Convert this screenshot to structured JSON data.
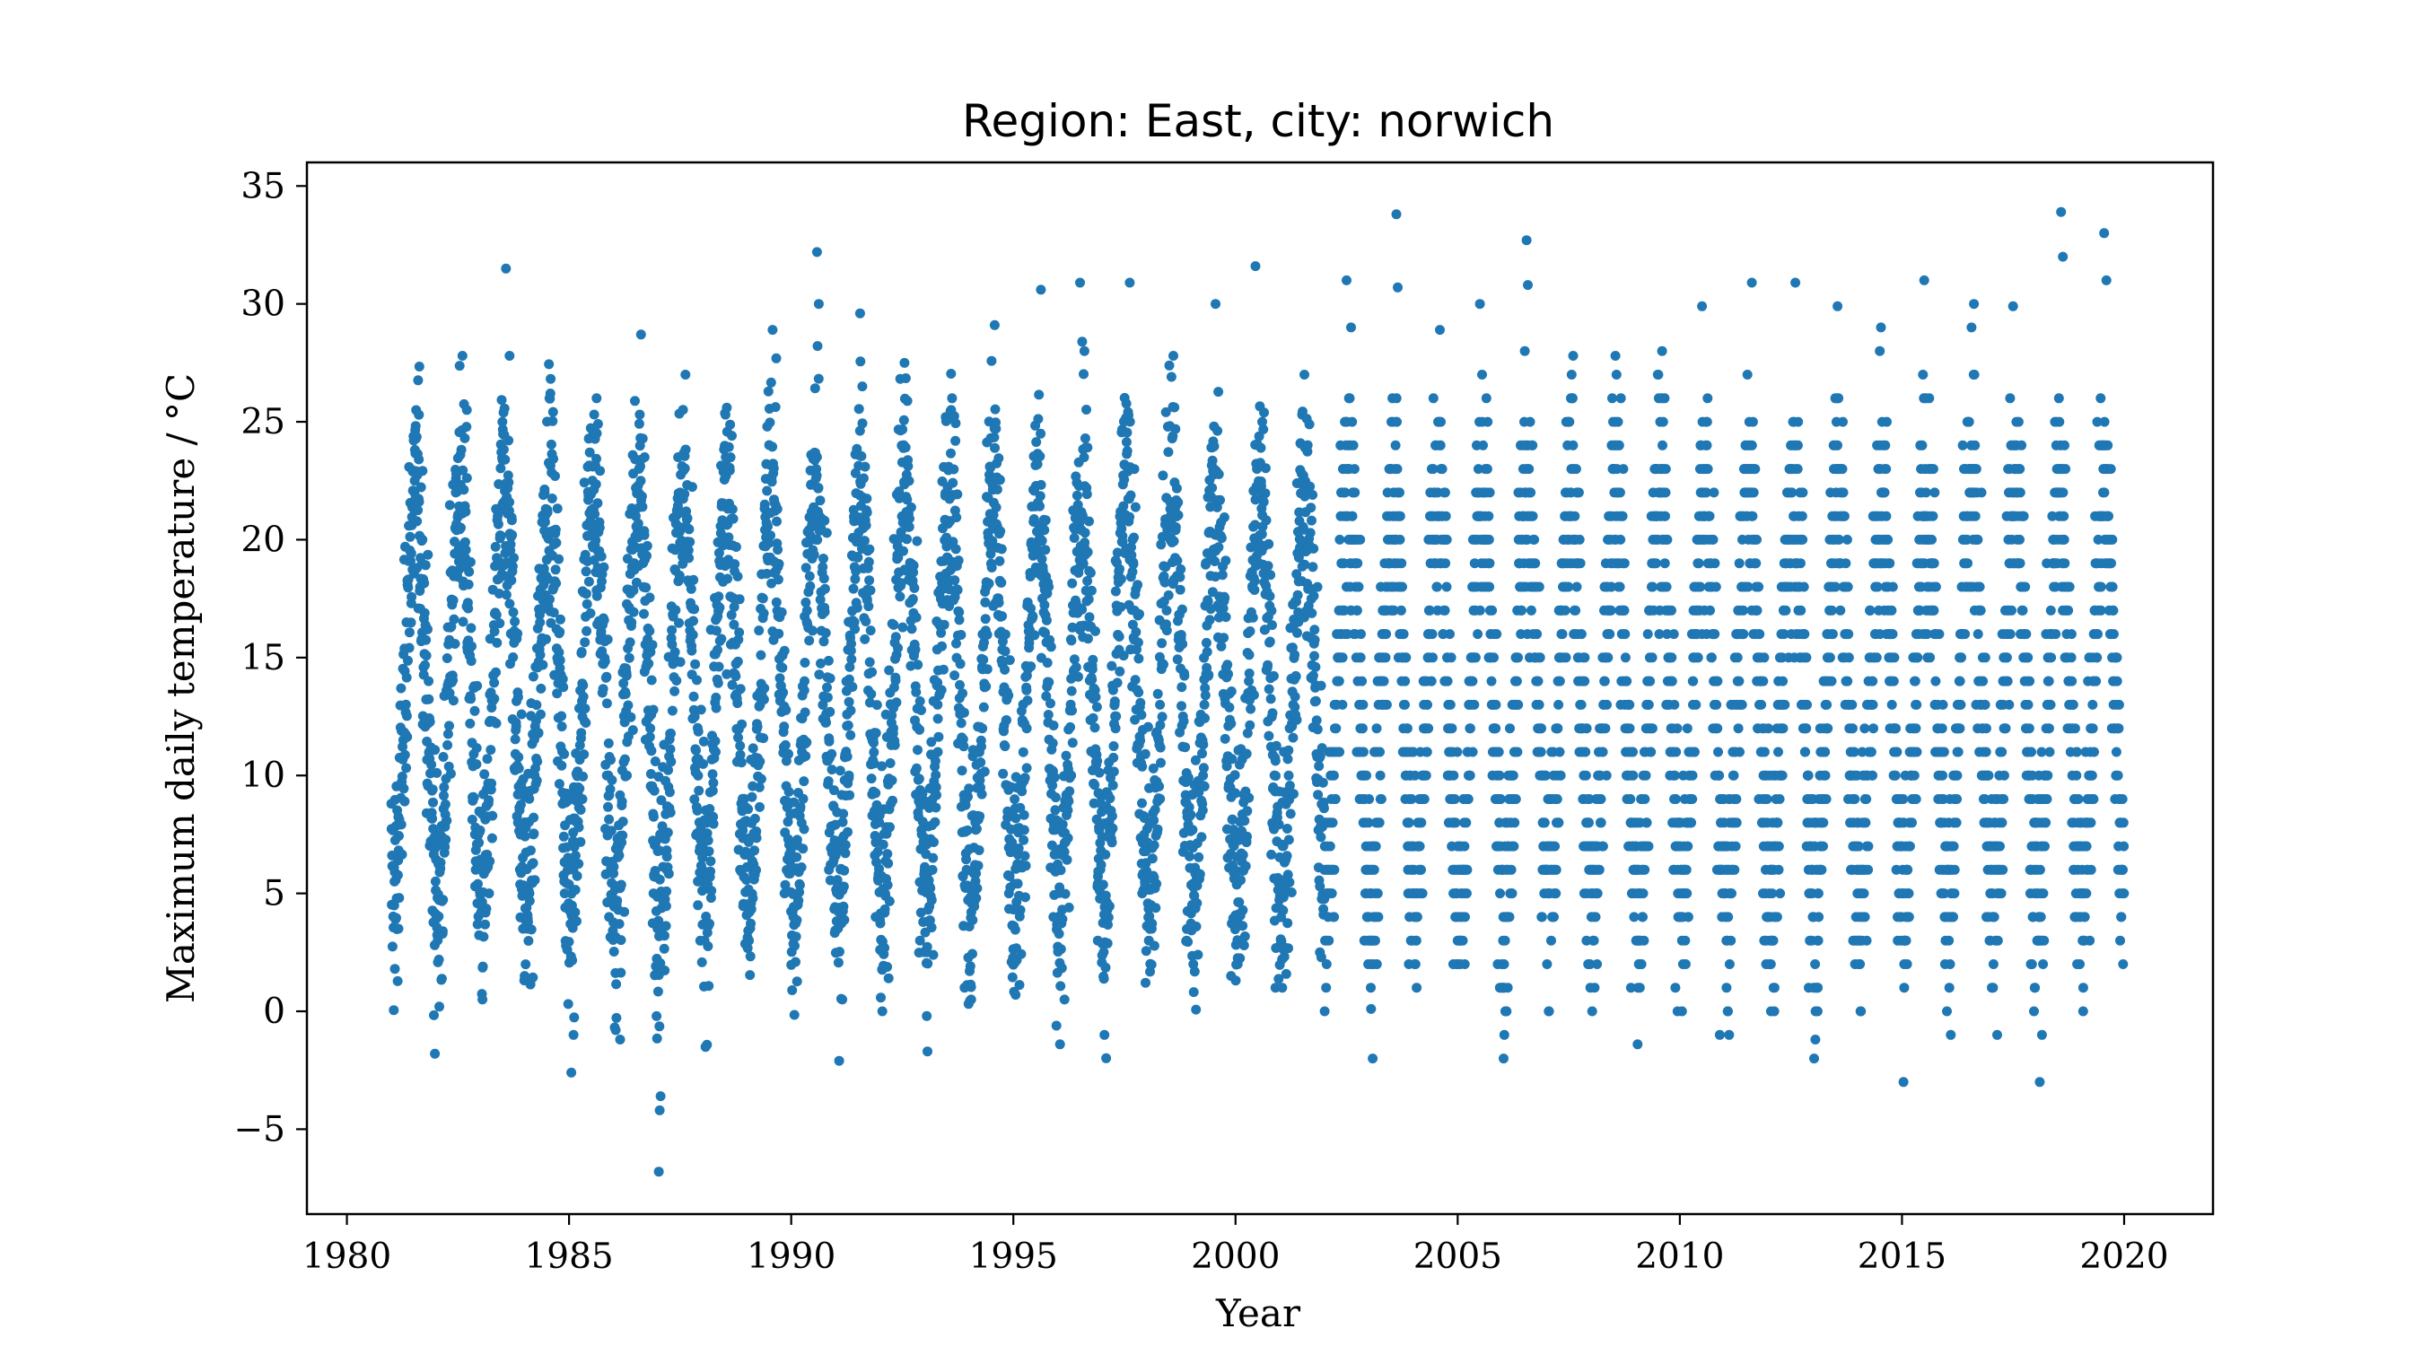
{
  "chart_data": {
    "type": "scatter",
    "title": "Region: East, city: norwich",
    "xlabel": "Year",
    "ylabel": "Maximum daily temperature / °C",
    "xlim": [
      1979.1,
      2022.0
    ],
    "ylim": [
      -8.6,
      36.0
    ],
    "xticks": [
      1980,
      1985,
      1990,
      1995,
      2000,
      2005,
      2010,
      2015,
      2020
    ],
    "yticks": [
      -5,
      0,
      5,
      10,
      15,
      20,
      25,
      30,
      35
    ],
    "grid": false,
    "legend": "none",
    "marker_color": "#1f77b4",
    "x_range": [
      1981.0,
      2020.0
    ],
    "annual_cycle_typical": {
      "winter_max": 5,
      "summer_max": 22
    },
    "points": [
      [
        1981.08,
        1.8
      ],
      [
        1981.16,
        3.5
      ],
      [
        1981.3,
        8.9
      ],
      [
        1981.45,
        17.3
      ],
      [
        1981.55,
        21.8
      ],
      [
        1981.62,
        25.3
      ],
      [
        1981.7,
        20.0
      ],
      [
        1981.85,
        11.0
      ],
      [
        1981.98,
        -1.8
      ],
      [
        1982.08,
        0.2
      ],
      [
        1982.2,
        7.0
      ],
      [
        1982.45,
        22.0
      ],
      [
        1982.6,
        27.8
      ],
      [
        1982.7,
        25.5
      ],
      [
        1982.9,
        6.0
      ],
      [
        1983.05,
        0.5
      ],
      [
        1983.2,
        5.0
      ],
      [
        1983.5,
        25.0
      ],
      [
        1983.58,
        31.5
      ],
      [
        1983.66,
        27.8
      ],
      [
        1983.85,
        8.0
      ],
      [
        1984.0,
        1.5
      ],
      [
        1984.2,
        7.5
      ],
      [
        1984.45,
        22.0
      ],
      [
        1984.58,
        26.2
      ],
      [
        1984.9,
        5.0
      ],
      [
        1985.05,
        -2.6
      ],
      [
        1985.1,
        -1.0
      ],
      [
        1985.3,
        9.0
      ],
      [
        1985.5,
        22.0
      ],
      [
        1985.62,
        26.0
      ],
      [
        1985.9,
        4.0
      ],
      [
        1986.05,
        -0.8
      ],
      [
        1986.15,
        -1.2
      ],
      [
        1986.3,
        10.0
      ],
      [
        1986.5,
        21.0
      ],
      [
        1986.62,
        28.7
      ],
      [
        1986.7,
        23.5
      ],
      [
        1986.9,
        5.0
      ],
      [
        1987.02,
        -6.8
      ],
      [
        1987.04,
        -4.2
      ],
      [
        1987.06,
        -3.6
      ],
      [
        1987.2,
        6.0
      ],
      [
        1987.5,
        22.0
      ],
      [
        1987.62,
        27.0
      ],
      [
        1987.9,
        4.5
      ],
      [
        1988.05,
        3.0
      ],
      [
        1988.3,
        11.0
      ],
      [
        1988.55,
        25.6
      ],
      [
        1988.85,
        6.0
      ],
      [
        1989.05,
        3.0
      ],
      [
        1989.3,
        13.0
      ],
      [
        1989.58,
        28.9
      ],
      [
        1989.85,
        5.0
      ],
      [
        1990.05,
        4.0
      ],
      [
        1990.3,
        14.0
      ],
      [
        1990.58,
        32.2
      ],
      [
        1990.62,
        30.0
      ],
      [
        1990.85,
        6.0
      ],
      [
        1991.08,
        -2.1
      ],
      [
        1991.15,
        0.5
      ],
      [
        1991.3,
        10.0
      ],
      [
        1991.55,
        29.6
      ],
      [
        1991.6,
        26.5
      ],
      [
        1991.9,
        4.0
      ],
      [
        1992.05,
        0.0
      ],
      [
        1992.3,
        12.0
      ],
      [
        1992.55,
        27.5
      ],
      [
        1992.9,
        3.0
      ],
      [
        1993.05,
        -0.2
      ],
      [
        1993.3,
        11.0
      ],
      [
        1993.6,
        25.5
      ],
      [
        1993.9,
        1.0
      ],
      [
        1994.05,
        0.5
      ],
      [
        1994.3,
        12.0
      ],
      [
        1994.58,
        29.1
      ],
      [
        1994.9,
        5.0
      ],
      [
        1995.05,
        0.7
      ],
      [
        1995.3,
        12.0
      ],
      [
        1995.62,
        30.6
      ],
      [
        1995.9,
        4.0
      ],
      [
        1996.05,
        -1.4
      ],
      [
        1996.15,
        0.5
      ],
      [
        1996.3,
        10.0
      ],
      [
        1996.5,
        30.9
      ],
      [
        1996.6,
        28.0
      ],
      [
        1996.9,
        3.0
      ],
      [
        1997.05,
        -1.0
      ],
      [
        1997.3,
        12.0
      ],
      [
        1997.62,
        30.9
      ],
      [
        1997.9,
        5.0
      ],
      [
        1998.05,
        3.0
      ],
      [
        1998.3,
        13.0
      ],
      [
        1998.6,
        27.8
      ],
      [
        1998.9,
        3.0
      ],
      [
        1999.05,
        2.0
      ],
      [
        1999.3,
        13.0
      ],
      [
        1999.55,
        30.0
      ],
      [
        1999.9,
        1.5
      ],
      [
        2000.05,
        2.0
      ],
      [
        2000.3,
        14.0
      ],
      [
        2000.45,
        31.6
      ],
      [
        2000.6,
        25.0
      ],
      [
        2000.9,
        1.0
      ],
      [
        2001.05,
        1.0
      ],
      [
        2001.3,
        13.0
      ],
      [
        2001.55,
        27.0
      ],
      [
        2001.9,
        2.5
      ],
      [
        2002.05,
        2.0
      ],
      [
        2002.3,
        14.0
      ],
      [
        2002.5,
        31.0
      ],
      [
        2002.6,
        29.0
      ],
      [
        2002.9,
        3.0
      ],
      [
        2003.05,
        0.1
      ],
      [
        2003.3,
        13.0
      ],
      [
        2003.62,
        33.8
      ],
      [
        2003.65,
        30.7
      ],
      [
        2003.9,
        2.0
      ],
      [
        2004.05,
        2.0
      ],
      [
        2004.3,
        14.0
      ],
      [
        2004.6,
        28.9
      ],
      [
        2004.9,
        2.0
      ],
      [
        2005.05,
        3.0
      ],
      [
        2005.3,
        14.0
      ],
      [
        2005.5,
        30.0
      ],
      [
        2005.9,
        2.0
      ],
      [
        2006.05,
        -1.0
      ],
      [
        2006.1,
        0.0
      ],
      [
        2006.3,
        14.0
      ],
      [
        2006.55,
        32.7
      ],
      [
        2006.58,
        30.8
      ],
      [
        2006.9,
        4.0
      ],
      [
        2007.05,
        0.0
      ],
      [
        2007.3,
        15.0
      ],
      [
        2007.6,
        27.8
      ],
      [
        2007.9,
        3.0
      ],
      [
        2008.05,
        3.0
      ],
      [
        2008.3,
        14.0
      ],
      [
        2008.55,
        27.8
      ],
      [
        2008.9,
        1.0
      ],
      [
        2009.05,
        -1.4
      ],
      [
        2009.1,
        1.0
      ],
      [
        2009.3,
        12.0
      ],
      [
        2009.6,
        28.0
      ],
      [
        2009.9,
        1.0
      ],
      [
        2010.05,
        0.0
      ],
      [
        2010.3,
        14.0
      ],
      [
        2010.5,
        29.9
      ],
      [
        2010.9,
        -1.0
      ],
      [
        2011.05,
        1.0
      ],
      [
        2011.3,
        15.0
      ],
      [
        2011.62,
        30.9
      ],
      [
        2011.9,
        3.0
      ],
      [
        2012.05,
        0.0
      ],
      [
        2012.3,
        13.0
      ],
      [
        2012.6,
        30.9
      ],
      [
        2012.9,
        1.0
      ],
      [
        2013.05,
        -1.2
      ],
      [
        2013.1,
        0.0
      ],
      [
        2013.3,
        12.0
      ],
      [
        2013.55,
        29.9
      ],
      [
        2013.9,
        3.0
      ],
      [
        2014.05,
        4.0
      ],
      [
        2014.3,
        15.0
      ],
      [
        2014.5,
        28.0
      ],
      [
        2014.9,
        4.0
      ],
      [
        2015.05,
        2.0
      ],
      [
        2015.3,
        14.0
      ],
      [
        2015.5,
        31.0
      ],
      [
        2015.9,
        5.0
      ],
      [
        2016.05,
        4.0
      ],
      [
        2016.3,
        14.0
      ],
      [
        2016.62,
        30.0
      ],
      [
        2016.9,
        4.0
      ],
      [
        2017.05,
        1.0
      ],
      [
        2017.3,
        15.0
      ],
      [
        2017.5,
        29.9
      ],
      [
        2017.9,
        2.0
      ],
      [
        2018.1,
        -3.0
      ],
      [
        2018.15,
        -1.0
      ],
      [
        2018.3,
        13.0
      ],
      [
        2018.58,
        33.9
      ],
      [
        2018.62,
        32.0
      ],
      [
        2018.9,
        4.0
      ],
      [
        2019.08,
        1.0
      ],
      [
        2019.3,
        14.0
      ],
      [
        2019.55,
        33.0
      ],
      [
        2019.6,
        31.0
      ],
      [
        2019.9,
        6.0
      ]
    ]
  }
}
